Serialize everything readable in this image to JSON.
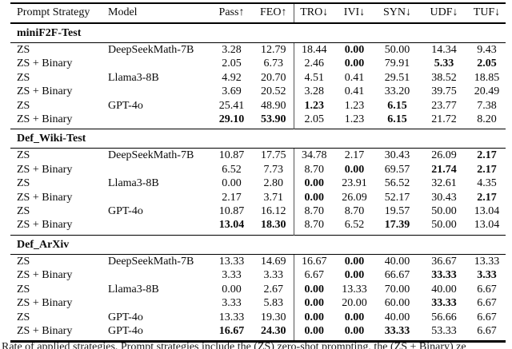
{
  "colors": {
    "background": "#ffffff",
    "text": "#0a0a0a",
    "rule": "#000000",
    "column_divider": "#555555"
  },
  "table": {
    "columns": [
      {
        "key": "prompt-strategy",
        "label": "Prompt Strategy",
        "align": "left"
      },
      {
        "key": "model",
        "label": "Model",
        "align": "left"
      },
      {
        "key": "pass",
        "label": "Pass↑"
      },
      {
        "key": "feo",
        "label": "FEO↑"
      },
      {
        "key": "tro",
        "label": "TRO↓",
        "divider_before": true
      },
      {
        "key": "ivi",
        "label": "IVI↓"
      },
      {
        "key": "syn",
        "label": "SYN↓"
      },
      {
        "key": "udf",
        "label": "UDF↓"
      },
      {
        "key": "tuf",
        "label": "TUF↓"
      }
    ],
    "sections": [
      {
        "title": "miniF2F-Test",
        "rows": [
          {
            "strategy": "ZS",
            "model": "DeepSeekMath-7B",
            "cells": [
              [
                "3.28",
                0
              ],
              [
                "12.79",
                0
              ],
              [
                "18.44",
                0
              ],
              [
                "0.00",
                1
              ],
              [
                "50.00",
                0
              ],
              [
                "14.34",
                0
              ],
              [
                "9.43",
                0
              ]
            ]
          },
          {
            "strategy": "ZS + Binary",
            "model": "",
            "cells": [
              [
                "2.05",
                0
              ],
              [
                "6.73",
                0
              ],
              [
                "2.46",
                0
              ],
              [
                "0.00",
                1
              ],
              [
                "79.91",
                0
              ],
              [
                "5.33",
                1
              ],
              [
                "2.05",
                1
              ]
            ]
          },
          {
            "strategy": "ZS",
            "model": "Llama3-8B",
            "cells": [
              [
                "4.92",
                0
              ],
              [
                "20.70",
                0
              ],
              [
                "4.51",
                0
              ],
              [
                "0.41",
                0
              ],
              [
                "29.51",
                0
              ],
              [
                "38.52",
                0
              ],
              [
                "18.85",
                0
              ]
            ]
          },
          {
            "strategy": "ZS + Binary",
            "model": "",
            "cells": [
              [
                "3.69",
                0
              ],
              [
                "20.52",
                0
              ],
              [
                "3.28",
                0
              ],
              [
                "0.41",
                0
              ],
              [
                "33.20",
                0
              ],
              [
                "39.75",
                0
              ],
              [
                "20.49",
                0
              ]
            ]
          },
          {
            "strategy": "ZS",
            "model": "GPT-4o",
            "cells": [
              [
                "25.41",
                0
              ],
              [
                "48.90",
                0
              ],
              [
                "1.23",
                1
              ],
              [
                "1.23",
                0
              ],
              [
                "6.15",
                1
              ],
              [
                "23.77",
                0
              ],
              [
                "7.38",
                0
              ]
            ]
          },
          {
            "strategy": "ZS + Binary",
            "model": "",
            "cells": [
              [
                "29.10",
                1
              ],
              [
                "53.90",
                1
              ],
              [
                "2.05",
                0
              ],
              [
                "1.23",
                0
              ],
              [
                "6.15",
                1
              ],
              [
                "21.72",
                0
              ],
              [
                "8.20",
                0
              ]
            ]
          }
        ]
      },
      {
        "title": "Def_Wiki-Test",
        "rows": [
          {
            "strategy": "ZS",
            "model": "DeepSeekMath-7B",
            "cells": [
              [
                "10.87",
                0
              ],
              [
                "17.75",
                0
              ],
              [
                "34.78",
                0
              ],
              [
                "2.17",
                0
              ],
              [
                "30.43",
                0
              ],
              [
                "26.09",
                0
              ],
              [
                "2.17",
                1
              ]
            ]
          },
          {
            "strategy": "ZS + Binary",
            "model": "",
            "cells": [
              [
                "6.52",
                0
              ],
              [
                "7.73",
                0
              ],
              [
                "8.70",
                0
              ],
              [
                "0.00",
                1
              ],
              [
                "69.57",
                0
              ],
              [
                "21.74",
                1
              ],
              [
                "2.17",
                1
              ]
            ]
          },
          {
            "strategy": "ZS",
            "model": "Llama3-8B",
            "cells": [
              [
                "0.00",
                0
              ],
              [
                "2.80",
                0
              ],
              [
                "0.00",
                1
              ],
              [
                "23.91",
                0
              ],
              [
                "56.52",
                0
              ],
              [
                "32.61",
                0
              ],
              [
                "4.35",
                0
              ]
            ]
          },
          {
            "strategy": "ZS + Binary",
            "model": "",
            "cells": [
              [
                "2.17",
                0
              ],
              [
                "3.71",
                0
              ],
              [
                "0.00",
                1
              ],
              [
                "26.09",
                0
              ],
              [
                "52.17",
                0
              ],
              [
                "30.43",
                0
              ],
              [
                "2.17",
                1
              ]
            ]
          },
          {
            "strategy": "ZS",
            "model": "GPT-4o",
            "cells": [
              [
                "10.87",
                0
              ],
              [
                "16.12",
                0
              ],
              [
                "8.70",
                0
              ],
              [
                "8.70",
                0
              ],
              [
                "19.57",
                0
              ],
              [
                "50.00",
                0
              ],
              [
                "13.04",
                0
              ]
            ]
          },
          {
            "strategy": "ZS + Binary",
            "model": "",
            "cells": [
              [
                "13.04",
                1
              ],
              [
                "18.30",
                1
              ],
              [
                "8.70",
                0
              ],
              [
                "6.52",
                0
              ],
              [
                "17.39",
                1
              ],
              [
                "50.00",
                0
              ],
              [
                "13.04",
                0
              ]
            ]
          }
        ]
      },
      {
        "title": "Def_ArXiv",
        "rows": [
          {
            "strategy": "ZS",
            "model": "DeepSeekMath-7B",
            "cells": [
              [
                "13.33",
                0
              ],
              [
                "14.69",
                0
              ],
              [
                "16.67",
                0
              ],
              [
                "0.00",
                1
              ],
              [
                "40.00",
                0
              ],
              [
                "36.67",
                0
              ],
              [
                "13.33",
                0
              ]
            ]
          },
          {
            "strategy": "ZS + Binary",
            "model": "",
            "cells": [
              [
                "3.33",
                0
              ],
              [
                "3.33",
                0
              ],
              [
                "6.67",
                0
              ],
              [
                "0.00",
                1
              ],
              [
                "66.67",
                0
              ],
              [
                "33.33",
                1
              ],
              [
                "3.33",
                1
              ]
            ]
          },
          {
            "strategy": "ZS",
            "model": "Llama3-8B",
            "cells": [
              [
                "0.00",
                0
              ],
              [
                "2.67",
                0
              ],
              [
                "0.00",
                1
              ],
              [
                "13.33",
                0
              ],
              [
                "70.00",
                0
              ],
              [
                "40.00",
                0
              ],
              [
                "6.67",
                0
              ]
            ]
          },
          {
            "strategy": "ZS + Binary",
            "model": "",
            "cells": [
              [
                "3.33",
                0
              ],
              [
                "5.83",
                0
              ],
              [
                "0.00",
                1
              ],
              [
                "20.00",
                0
              ],
              [
                "60.00",
                0
              ],
              [
                "33.33",
                1
              ],
              [
                "6.67",
                0
              ]
            ]
          },
          {
            "strategy": "ZS",
            "model": "GPT-4o",
            "cells": [
              [
                "13.33",
                0
              ],
              [
                "19.30",
                0
              ],
              [
                "0.00",
                1
              ],
              [
                "0.00",
                1
              ],
              [
                "40.00",
                0
              ],
              [
                "56.66",
                0
              ],
              [
                "6.67",
                0
              ]
            ]
          },
          {
            "strategy": "ZS + Binary",
            "model": "GPT-4o",
            "cells": [
              [
                "16.67",
                1
              ],
              [
                "24.30",
                1
              ],
              [
                "0.00",
                1
              ],
              [
                "0.00",
                1
              ],
              [
                "33.33",
                1
              ],
              [
                "53.33",
                0
              ],
              [
                "6.67",
                0
              ]
            ]
          }
        ]
      }
    ]
  },
  "caption_fragment": "Rate of applied strategies. Prompt strategies include the (ZS) zero-shot prompting, the (ZS + Binary) ze"
}
